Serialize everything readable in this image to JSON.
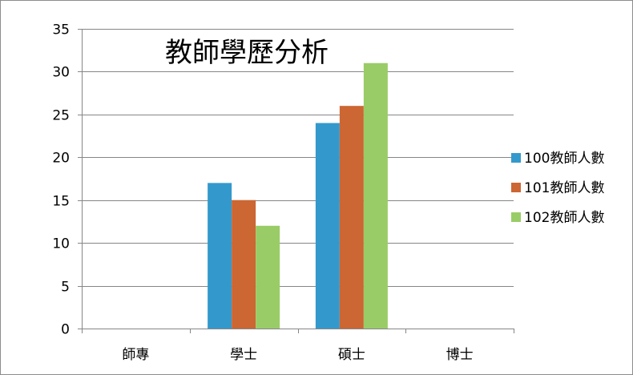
{
  "chart_data": {
    "type": "bar",
    "title": "教師學歷分析",
    "xlabel": "",
    "ylabel": "",
    "categories": [
      "師專",
      "學士",
      "碩士",
      "博士"
    ],
    "series": [
      {
        "name": "100教師人數",
        "color": "#3399cc",
        "values": [
          0,
          17,
          24,
          0
        ]
      },
      {
        "name": "101教師人數",
        "color": "#cc6633",
        "values": [
          0,
          15,
          26,
          0
        ]
      },
      {
        "name": "102教師人數",
        "color": "#99cc66",
        "values": [
          0,
          12,
          31,
          0
        ]
      }
    ],
    "ylim": [
      0,
      35
    ],
    "yticks": [
      0,
      5,
      10,
      15,
      20,
      25,
      30,
      35
    ],
    "grid": true,
    "legend_position": "right"
  }
}
